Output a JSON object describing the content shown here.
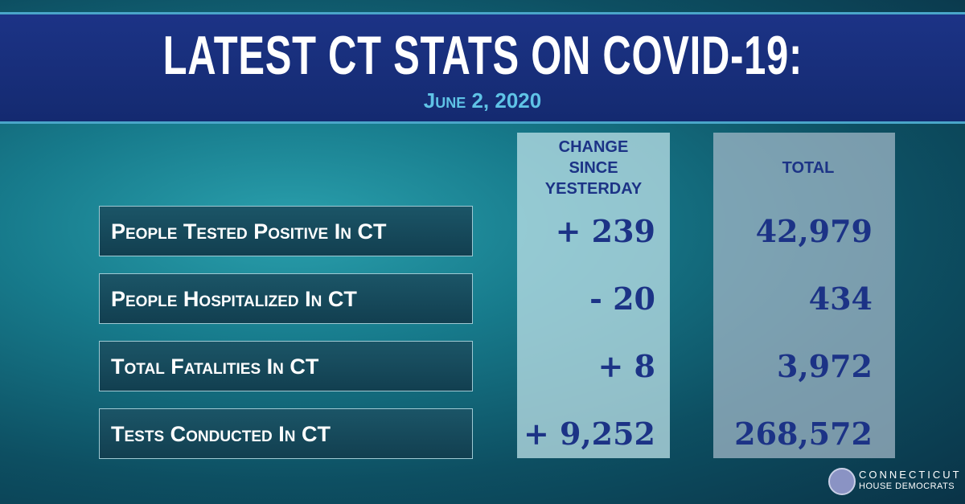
{
  "header": {
    "title": "LATEST CT STATS ON COVID-19:",
    "date": "June 2, 2020"
  },
  "table": {
    "columns": [
      "CHANGE SINCE YESTERDAY",
      "TOTAL"
    ],
    "rows": [
      {
        "label": "People Tested Positive In CT",
        "change": "+ 239",
        "total": "42,979"
      },
      {
        "label": "People Hospitalized In CT",
        "change": "- 20",
        "total": "434"
      },
      {
        "label": "Total Fatalities In CT",
        "change": "+ 8",
        "total": "3,972"
      },
      {
        "label": "Tests Conducted In CT",
        "change": "+ 9,252",
        "total": "268,572"
      }
    ]
  },
  "logo": {
    "name": "CONNECTICUT",
    "subtitle": "HOUSE DEMOCRATS"
  }
}
